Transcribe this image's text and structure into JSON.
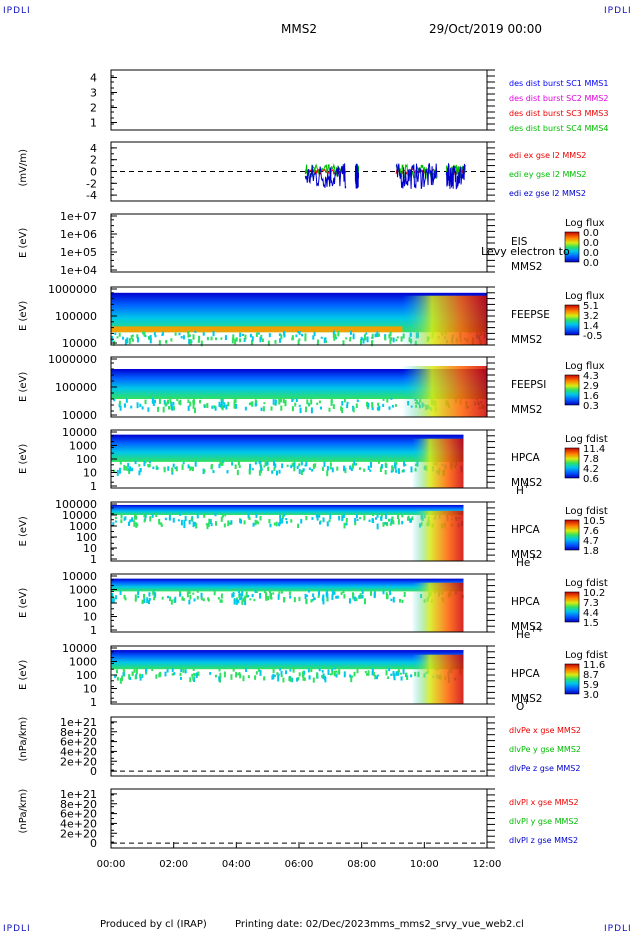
{
  "corners": {
    "tl": "IPDLI",
    "tr": "IPDLI",
    "bl": "IPDLI",
    "br": "IPDLI"
  },
  "header": {
    "spacecraft": "MMS2",
    "date": "29/Oct/2019 00:00"
  },
  "footer": {
    "producer": "Produced by cl (IRAP)",
    "printing": "Printing date: 02/Dec/2023",
    "file": "mms_mms2_srvy_vue_web2.cl"
  },
  "colors": {
    "c1": "#0000ff",
    "c2": "#dd00dd",
    "c3": "#ee0000",
    "c4": "#00bb00",
    "red": "#ee0000",
    "green": "#00bb00",
    "blue": "#0000cc"
  },
  "chart_data": [
    {
      "type": "line",
      "id": "des",
      "ylim": [
        0.5,
        4.5
      ],
      "y_ticks": [
        "4",
        "3",
        "2",
        "1"
      ],
      "legend": [
        {
          "name": "des dist burst SC1 MMS1",
          "color": "c1"
        },
        {
          "name": "des dist burst SC2 MMS2",
          "color": "c2"
        },
        {
          "name": "des dist burst SC3 MMS3",
          "color": "c3"
        },
        {
          "name": "des dist burst SC4 MMS4",
          "color": "c4"
        }
      ]
    },
    {
      "type": "line",
      "id": "edi",
      "ylabel": "(mV/m)",
      "ylim": [
        -5,
        5
      ],
      "y_ticks": [
        "4",
        "2",
        "0",
        "-2",
        "-4"
      ],
      "legend": [
        {
          "name": "edi ex gse l2 MMS2",
          "color": "red"
        },
        {
          "name": "edi ey gse l2 MMS2",
          "color": "green"
        },
        {
          "name": "edi ez gse l2 MMS2",
          "color": "blue"
        }
      ],
      "series": [
        {
          "name": "edi ex gse l2 MMS2",
          "color": "red"
        },
        {
          "name": "edi ey gse l2 MMS2",
          "color": "green"
        },
        {
          "name": "edi ez gse l2 MMS2",
          "color": "blue"
        }
      ],
      "data_intervals_hours": [
        [
          6.2,
          7.5
        ],
        [
          7.8,
          7.9
        ],
        [
          9.1,
          10.4
        ],
        [
          10.7,
          11.3
        ]
      ]
    },
    {
      "type": "heatmap",
      "id": "eis",
      "ylabel": "E (eV)",
      "log": true,
      "y_ticks": [
        "1e+07",
        "1e+06",
        "1e+05",
        "1e+04"
      ],
      "label": "EIS",
      "label2": "MMS2",
      "overlay": "Levy electron to",
      "colorbar": {
        "title": "Log flux",
        "ticks": [
          "0.0",
          "0.0",
          "0.0",
          "0.0"
        ]
      }
    },
    {
      "type": "heatmap",
      "id": "feepse",
      "ylabel": "E (eV)",
      "log": true,
      "y_ticks": [
        "1000000",
        "100000",
        "10000"
      ],
      "label": "FEEPSE",
      "label2": "MMS2",
      "colorbar": {
        "title": "Log flux",
        "ticks": [
          "5.1",
          "3.2",
          "1.4",
          "-0.5"
        ]
      }
    },
    {
      "type": "heatmap",
      "id": "feepsi",
      "ylabel": "E (eV)",
      "log": true,
      "y_ticks": [
        "1000000",
        "100000",
        "10000"
      ],
      "label": "FEEPSI",
      "label2": "MMS2",
      "colorbar": {
        "title": "Log flux",
        "ticks": [
          "4.3",
          "2.9",
          "1.6",
          "0.3"
        ]
      }
    },
    {
      "type": "heatmap",
      "id": "hpca_h",
      "ylabel": "E (eV)",
      "log": true,
      "y_ticks": [
        "10000",
        "1000",
        "100",
        "10",
        "1"
      ],
      "label": "HPCA",
      "label2": "MMS2",
      "species": "H",
      "charge": "+",
      "colorbar": {
        "title": "Log fdist",
        "ticks": [
          "11.4",
          "7.8",
          "4.2",
          "0.6"
        ]
      }
    },
    {
      "type": "heatmap",
      "id": "hpca_he",
      "ylabel": "E (eV)",
      "log": true,
      "y_ticks": [
        "100000",
        "10000",
        "1000",
        "100",
        "10",
        "1"
      ],
      "label": "HPCA",
      "label2": "MMS2",
      "species": "He",
      "charge": "+",
      "colorbar": {
        "title": "Log fdist",
        "ticks": [
          "10.5",
          "7.6",
          "4.7",
          "1.8"
        ]
      }
    },
    {
      "type": "heatmap",
      "id": "hpca_he2",
      "ylabel": "E (eV)",
      "log": true,
      "y_ticks": [
        "10000",
        "1000",
        "100",
        "10",
        "1"
      ],
      "label": "HPCA",
      "label2": "MMS2",
      "species": "He",
      "charge": "++",
      "colorbar": {
        "title": "Log fdist",
        "ticks": [
          "10.2",
          "7.3",
          "4.4",
          "1.5"
        ]
      }
    },
    {
      "type": "heatmap",
      "id": "hpca_o",
      "ylabel": "E (eV)",
      "log": true,
      "y_ticks": [
        "10000",
        "1000",
        "100",
        "10",
        "1"
      ],
      "label": "HPCA",
      "label2": "MMS2",
      "species": "O",
      "charge": "+",
      "colorbar": {
        "title": "Log fdist",
        "ticks": [
          "11.6",
          "8.7",
          "5.9",
          "3.0"
        ]
      }
    },
    {
      "type": "line",
      "id": "divpe",
      "ylabel": "(nPa/km)",
      "ylim": [
        -1e+20,
        1.1e+21
      ],
      "y_ticks": [
        "1e+21",
        "8e+20",
        "6e+20",
        "4e+20",
        "2e+20",
        "0"
      ],
      "legend": [
        {
          "name": "dlvPe x gse MMS2",
          "color": "red"
        },
        {
          "name": "dlvPe y gse MMS2",
          "color": "green"
        },
        {
          "name": "dlvPe z gse MMS2",
          "color": "blue"
        }
      ]
    },
    {
      "type": "line",
      "id": "divpi",
      "ylabel": "(nPa/km)",
      "ylim": [
        -1e+20,
        1.1e+21
      ],
      "y_ticks": [
        "1e+21",
        "8e+20",
        "6e+20",
        "4e+20",
        "2e+20",
        "0"
      ],
      "legend": [
        {
          "name": "dlvPl x gse MMS2",
          "color": "red"
        },
        {
          "name": "dlvPl y gse MMS2",
          "color": "green"
        },
        {
          "name": "dlvPl z gse MMS2",
          "color": "blue"
        }
      ]
    }
  ],
  "x_axis": {
    "range_hours": [
      0,
      12
    ],
    "tick_labels": [
      "00:00",
      "02:00",
      "04:00",
      "06:00",
      "08:00",
      "10:00",
      "12:00"
    ]
  }
}
